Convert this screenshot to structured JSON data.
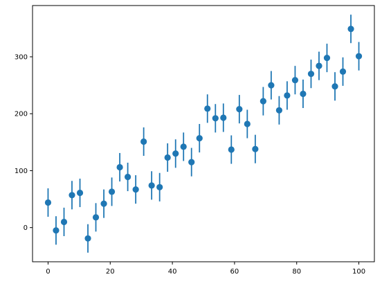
{
  "chart_data": {
    "type": "scatter",
    "errorbars": true,
    "title": "",
    "xlabel": "",
    "ylabel": "",
    "xlim": [
      -5,
      105
    ],
    "ylim": [
      -60,
      390
    ],
    "grid": false,
    "legend": "none",
    "marker_color": "#1f77b4",
    "xticks": [
      0,
      20,
      40,
      60,
      80,
      100
    ],
    "yticks": [
      0,
      100,
      200,
      300
    ],
    "error": 25,
    "x": [
      0,
      2.56,
      5.13,
      7.69,
      10.26,
      12.82,
      15.38,
      17.95,
      20.51,
      23.08,
      25.64,
      28.21,
      30.77,
      33.33,
      35.9,
      38.46,
      41.03,
      43.59,
      46.15,
      48.72,
      51.28,
      53.85,
      56.41,
      58.97,
      61.54,
      64.1,
      66.67,
      69.23,
      71.79,
      74.36,
      76.92,
      79.49,
      82.05,
      84.62,
      87.18,
      89.74,
      92.31,
      94.87,
      97.44,
      100
    ],
    "y": [
      44,
      -5,
      10,
      57,
      61,
      -19,
      18,
      42,
      63,
      106,
      89,
      67,
      151,
      74,
      71,
      123,
      130,
      142,
      115,
      157,
      209,
      192,
      193,
      137,
      208,
      182,
      138,
      222,
      250,
      206,
      232,
      259,
      235,
      270,
      284,
      298,
      248,
      274,
      349,
      301
    ]
  }
}
